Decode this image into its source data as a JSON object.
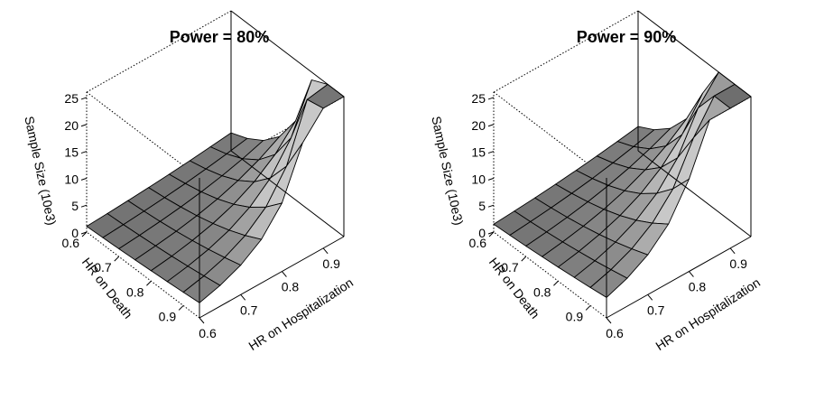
{
  "chart_data": [
    {
      "type": "surface",
      "title": "Power = 80%",
      "xlabel": "HR on Hospitalization",
      "ylabel": "HR on Death",
      "zlabel": "Sample Size (10e3)",
      "x_ticks": [
        "0.6",
        "0.7",
        "0.8",
        "0.9"
      ],
      "y_ticks": [
        "0.6",
        "0.7",
        "0.8",
        "0.9"
      ],
      "z_ticks": [
        "0",
        "5",
        "10",
        "15",
        "20",
        "25"
      ],
      "xlim": [
        0.6,
        0.95
      ],
      "ylim": [
        0.6,
        0.95
      ],
      "zlim": [
        0,
        26
      ],
      "x": [
        0.6,
        0.65,
        0.7,
        0.75,
        0.8,
        0.85,
        0.9,
        0.95
      ],
      "y": [
        0.6,
        0.65,
        0.7,
        0.75,
        0.8,
        0.85,
        0.9,
        0.95
      ],
      "z_scale": 1.0
    },
    {
      "type": "surface",
      "title": "Power = 90%",
      "xlabel": "HR on Hospitalization",
      "ylabel": "HR on Death",
      "zlabel": "Sample Size (10e3)",
      "x_ticks": [
        "0.6",
        "0.7",
        "0.8",
        "0.9"
      ],
      "y_ticks": [
        "0.6",
        "0.7",
        "0.8",
        "0.9"
      ],
      "z_ticks": [
        "0",
        "5",
        "10",
        "15",
        "20",
        "25"
      ],
      "xlim": [
        0.6,
        0.95
      ],
      "ylim": [
        0.6,
        0.95
      ],
      "zlim": [
        0,
        26
      ],
      "x": [
        0.6,
        0.65,
        0.7,
        0.75,
        0.8,
        0.85,
        0.9,
        0.95
      ],
      "y": [
        0.6,
        0.65,
        0.7,
        0.75,
        0.8,
        0.85,
        0.9,
        0.95
      ],
      "z_scale": 1.35
    }
  ]
}
